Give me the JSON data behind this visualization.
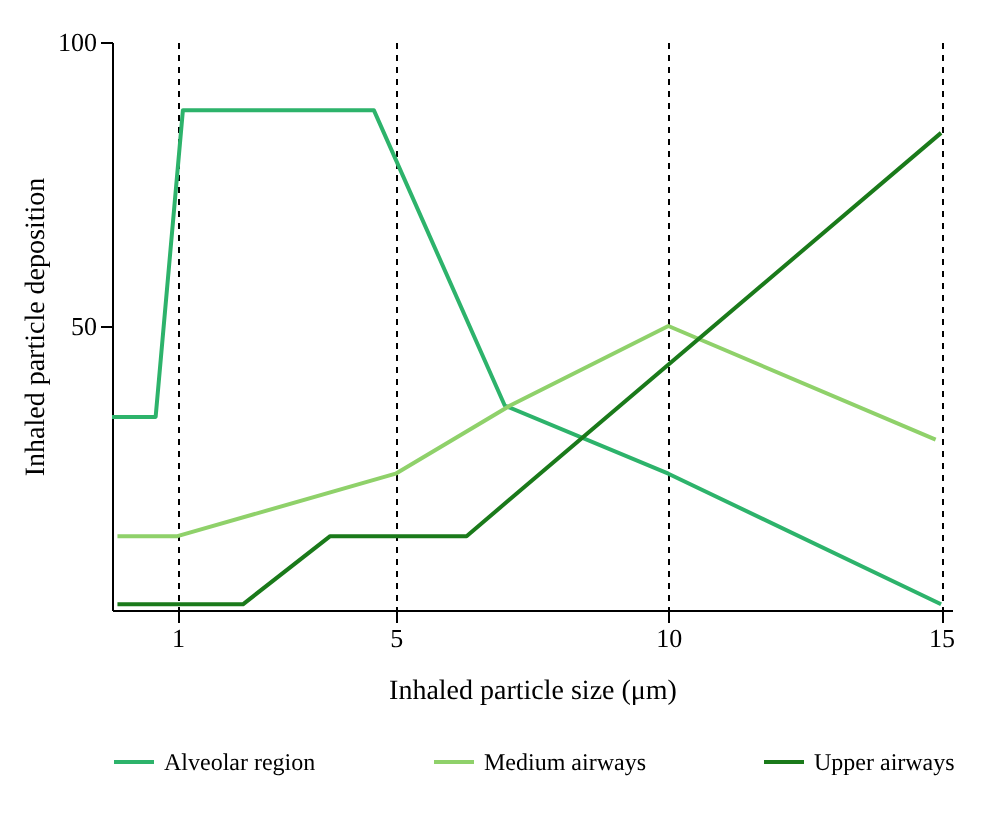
{
  "chart_data": {
    "type": "line",
    "xlabel": "Inhaled particle size (μm)",
    "ylabel": "Inhaled particle deposition",
    "xlim": [
      -0.2,
      15.2
    ],
    "xticks": [
      1,
      5,
      10,
      15
    ],
    "ylim": [
      0,
      100
    ],
    "yticks": [
      50,
      100
    ],
    "grid": "x",
    "legend": "bottom",
    "marker": "none",
    "line_style": "solid",
    "series": [
      {
        "name": "Alveolar region",
        "color": "#2db36b",
        "x": [
          -0.2,
          0.6,
          1.1,
          4.6,
          7.0,
          10,
          15
        ],
        "values": [
          34,
          34,
          88,
          88,
          36,
          24,
          1
        ]
      },
      {
        "name": "Medium airways",
        "color": "#8fd16a",
        "x": [
          -0.1,
          1,
          5,
          7.1,
          10,
          14.9
        ],
        "values": [
          13,
          13,
          24,
          36,
          50,
          30
        ]
      },
      {
        "name": "Upper airways",
        "color": "#1a7a1a",
        "x": [
          -0.1,
          2.2,
          3.8,
          6.3,
          15
        ],
        "values": [
          1,
          1,
          13,
          13,
          84
        ]
      }
    ]
  }
}
